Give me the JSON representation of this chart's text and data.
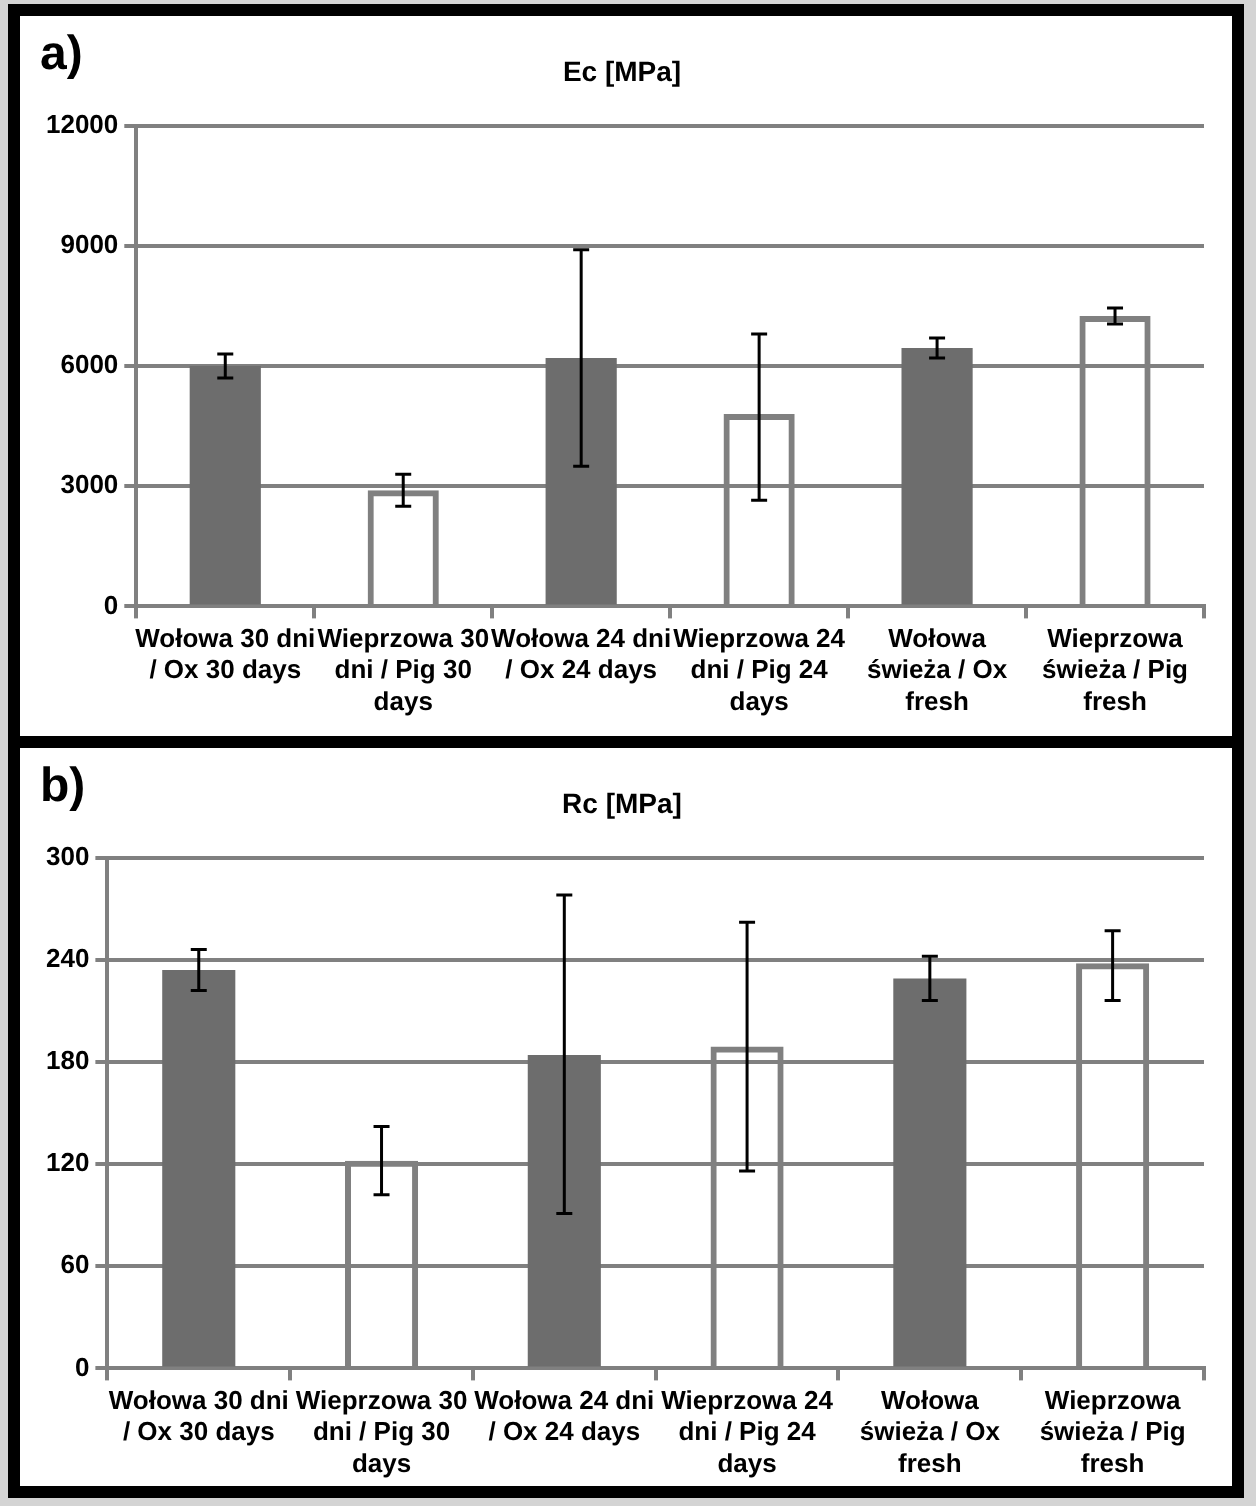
{
  "chart_data": [
    {
      "type": "bar",
      "title": "Ec [MPa]",
      "annotations": [
        "a)"
      ],
      "categories": [
        "Wołowa 30 dni / Ox 30 days",
        "Wieprzowa 30 dni / Pig 30 days",
        "Wołowa 24 dni / Ox 24 days",
        "Wieprzowa 24 dni / Pig 24 days",
        "Wołowa świeża / Ox fresh",
        "Wieprzowa świeża / Pig fresh"
      ],
      "values": [
        6000,
        2900,
        6200,
        4800,
        6450,
        7250
      ],
      "colors": [
        "#6d6d6d",
        "#808080",
        "#6d6d6d",
        "#808080",
        "#6d6d6d",
        "#808080"
      ],
      "errors": [
        300,
        400,
        [
          3500,
          8900
        ],
        [
          2650,
          6800
        ],
        250,
        200
      ],
      "ylim": [
        0,
        12000
      ],
      "yticks": [
        0,
        3000,
        6000,
        9000,
        12000
      ],
      "grid": "y",
      "legend": false
    },
    {
      "type": "bar",
      "title": "Rc [MPa]",
      "annotations": [
        "b)"
      ],
      "categories": [
        "Wołowa 30 dni / Ox 30 days",
        "Wieprzowa 30 dni / Pig 30 days",
        "Wołowa 24 dni / Ox 24 days",
        "Wieprzowa 24 dni / Pig 24 days",
        "Wołowa świeża / Ox fresh",
        "Wieprzowa świeża / Pig fresh"
      ],
      "values": [
        234,
        122,
        184,
        189,
        229,
        238
      ],
      "colors": [
        "#6d6d6d",
        "#808080",
        "#6d6d6d",
        "#808080",
        "#6d6d6d",
        "#808080"
      ],
      "errors": [
        12,
        20,
        [
          91,
          278
        ],
        [
          116,
          262
        ],
        13,
        [
          216,
          257
        ]
      ],
      "ylim": [
        0,
        300
      ],
      "yticks": [
        0,
        60,
        120,
        180,
        240,
        300
      ],
      "grid": "y",
      "legend": false
    }
  ]
}
